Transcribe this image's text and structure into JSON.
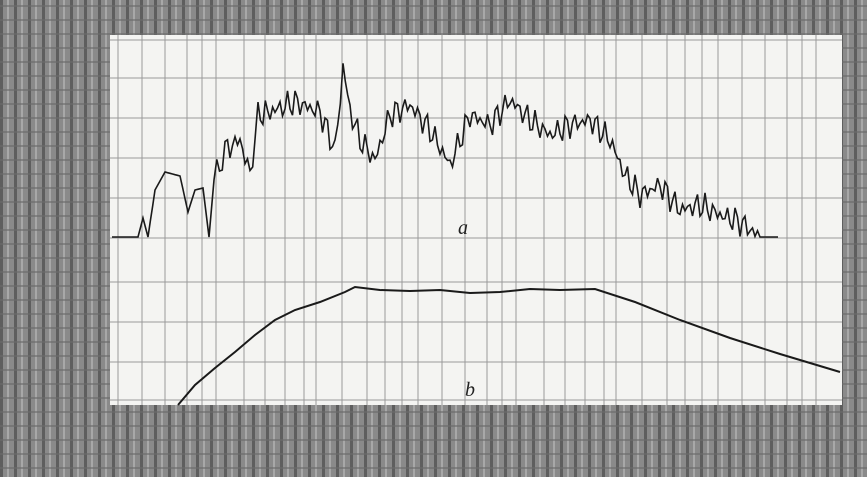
{
  "labels": {
    "curve_a": "a",
    "curve_b": "b"
  }
}
